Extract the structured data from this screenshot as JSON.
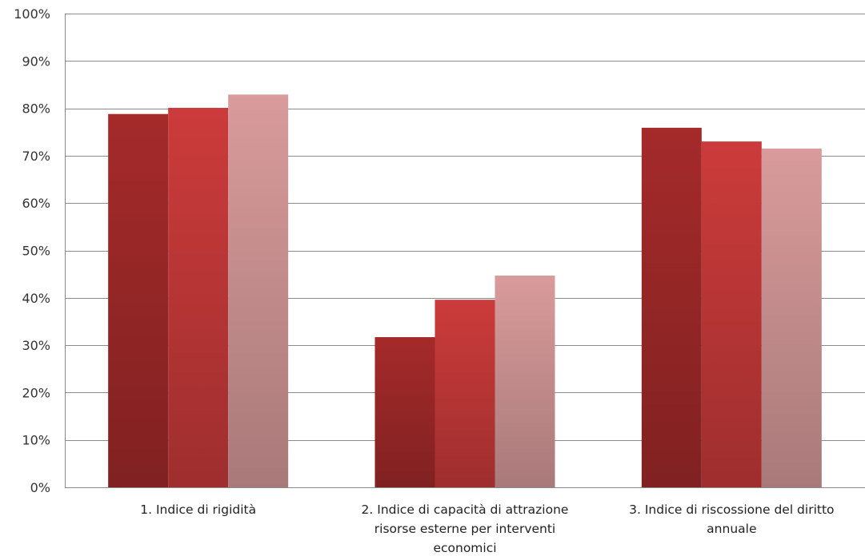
{
  "chart_data": {
    "type": "bar",
    "title": "",
    "xlabel": "",
    "ylabel": "",
    "ylim": [
      0,
      100
    ],
    "yticks": [
      "0%",
      "10%",
      "20%",
      "30%",
      "40%",
      "50%",
      "60%",
      "70%",
      "80%",
      "90%",
      "100%"
    ],
    "grid": true,
    "legend": "none",
    "categories": [
      "1. Indice di rigidità",
      "2. Indice di capacità di attrazione risorse esterne per interventi economici",
      "3. Indice di riscossione del diritto annuale"
    ],
    "category_lines": [
      [
        "1. Indice di rigidità"
      ],
      [
        "2. Indice di capacità di attrazione",
        "risorse esterne per interventi",
        "economici"
      ],
      [
        "3. Indice di riscossione del diritto",
        "annuale"
      ]
    ],
    "series": [
      {
        "values": [
          78.8,
          31.7,
          75.9
        ],
        "color": "#a52a2a"
      },
      {
        "values": [
          80.1,
          39.6,
          73.0
        ],
        "color": "#cc3b3b"
      },
      {
        "values": [
          82.9,
          44.7,
          71.5
        ],
        "color": "#d99b9b"
      }
    ]
  }
}
